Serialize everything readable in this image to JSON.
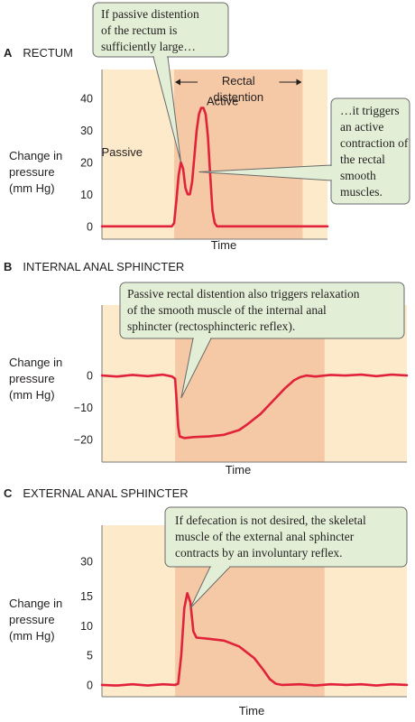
{
  "chart_data": [
    {
      "panel_letter": "A",
      "type": "line",
      "title": "RECTUM",
      "xlabel": "Time",
      "ylabel": [
        "Change in",
        "pressure",
        "(mm Hg)"
      ],
      "yticks": [
        0,
        10,
        20,
        30,
        40
      ],
      "ylim": [
        -4,
        49
      ],
      "xlim": [
        0,
        100
      ],
      "shaded_interval": [
        32,
        89
      ],
      "shaded_label": [
        "Rectal",
        "distention"
      ],
      "series": [
        {
          "color": "#e0233a",
          "points": [
            [
              0,
              0
            ],
            [
              31,
              0
            ],
            [
              32,
              1
            ],
            [
              33,
              8
            ],
            [
              34,
              16
            ],
            [
              35,
              20
            ],
            [
              36,
              18
            ],
            [
              37,
              12
            ],
            [
              38,
              10
            ],
            [
              39,
              10
            ],
            [
              40,
              14
            ],
            [
              41,
              22
            ],
            [
              42,
              30
            ],
            [
              43,
              35
            ],
            [
              44,
              37
            ],
            [
              45,
              37
            ],
            [
              46,
              35
            ],
            [
              47,
              28
            ],
            [
              48,
              16
            ],
            [
              49,
              5
            ],
            [
              50,
              1
            ],
            [
              51,
              0
            ],
            [
              100,
              0
            ]
          ]
        }
      ],
      "annotations": [
        {
          "text": "Passive",
          "x": 35,
          "y": 20
        },
        {
          "text": "Active",
          "x": 44,
          "y": 37
        }
      ],
      "callouts": [
        {
          "lines": [
            "If passive distention",
            "of the rectum is",
            "sufficiently large…"
          ],
          "target": [
            35,
            20
          ]
        },
        {
          "lines": [
            "…it triggers",
            "an active",
            "contraction of",
            "the rectal",
            "smooth",
            "muscles."
          ],
          "target": [
            43,
            17
          ]
        }
      ]
    },
    {
      "panel_letter": "B",
      "type": "line",
      "title": "INTERNAL ANAL SPHINCTER",
      "xlabel": "Time",
      "ylabel": [
        "Change in",
        "pressure",
        "(mm Hg)"
      ],
      "yticks": [
        -20,
        -10,
        0
      ],
      "ylim": [
        -27,
        22
      ],
      "xlim": [
        0,
        100
      ],
      "shaded_interval": [
        24,
        73
      ],
      "series": [
        {
          "color": "#e0233a",
          "points": [
            [
              0,
              0
            ],
            [
              5,
              -0.3
            ],
            [
              10,
              0.2
            ],
            [
              15,
              -0.2
            ],
            [
              20,
              0.3
            ],
            [
              23,
              -0.3
            ],
            [
              24,
              -1
            ],
            [
              24.5,
              -8
            ],
            [
              25,
              -16
            ],
            [
              25.5,
              -19
            ],
            [
              27,
              -19.5
            ],
            [
              30,
              -19.2
            ],
            [
              35,
              -19
            ],
            [
              40,
              -18.5
            ],
            [
              45,
              -17
            ],
            [
              48,
              -15
            ],
            [
              52,
              -12
            ],
            [
              56,
              -8
            ],
            [
              60,
              -4
            ],
            [
              63,
              -1.5
            ],
            [
              65,
              -0.5
            ],
            [
              67,
              0
            ],
            [
              70,
              -0.3
            ],
            [
              75,
              0.2
            ],
            [
              80,
              0
            ],
            [
              85,
              0.3
            ],
            [
              90,
              -0.2
            ],
            [
              95,
              0.3
            ],
            [
              100,
              0
            ]
          ]
        }
      ],
      "callouts": [
        {
          "lines": [
            "Passive rectal distention also triggers relaxation",
            "of the smooth muscle of the internal anal",
            "sphincter (rectosphincteric reflex)."
          ],
          "target": [
            26,
            -7
          ]
        }
      ]
    },
    {
      "panel_letter": "C",
      "type": "line",
      "title": "EXTERNAL ANAL SPHINCTER",
      "xlabel": "Time",
      "ylabel": [
        "Change in",
        "pressure",
        "(mm Hg)"
      ],
      "yticks": [
        0,
        5,
        10,
        15,
        30
      ],
      "ylim": [
        -2,
        27
      ],
      "xlim": [
        0,
        100
      ],
      "shaded_interval": [
        24,
        73
      ],
      "series": [
        {
          "color": "#e0233a",
          "points": [
            [
              0,
              0
            ],
            [
              5,
              -0.1
            ],
            [
              10,
              0.1
            ],
            [
              15,
              -0.1
            ],
            [
              20,
              0.1
            ],
            [
              24,
              0
            ],
            [
              25,
              0.2
            ],
            [
              26,
              5
            ],
            [
              27,
              13
            ],
            [
              28,
              15.5
            ],
            [
              29,
              14
            ],
            [
              30,
              9
            ],
            [
              31,
              8
            ],
            [
              35,
              7.8
            ],
            [
              40,
              7.5
            ],
            [
              45,
              6.5
            ],
            [
              50,
              4.5
            ],
            [
              53,
              2.5
            ],
            [
              55,
              1
            ],
            [
              57,
              0.2
            ],
            [
              59,
              0
            ],
            [
              65,
              0.1
            ],
            [
              70,
              -0.1
            ],
            [
              75,
              0.1
            ],
            [
              80,
              0
            ],
            [
              85,
              0.1
            ],
            [
              90,
              -0.1
            ],
            [
              95,
              0.1
            ],
            [
              100,
              0
            ]
          ]
        }
      ],
      "callouts": [
        {
          "lines": [
            "If defecation is not desired, the skeletal",
            "muscle of the external anal sphincter",
            "contracts by an involuntary reflex."
          ],
          "target": [
            29,
            13
          ]
        }
      ]
    }
  ],
  "colors": {
    "plot_bg": "#fdeacb",
    "shade": "#f6c9a6",
    "line": "#e0233a",
    "callout_fill": "#e2efd6",
    "callout_stroke": "#6a6a6a",
    "axis": "#7a7a7a"
  }
}
